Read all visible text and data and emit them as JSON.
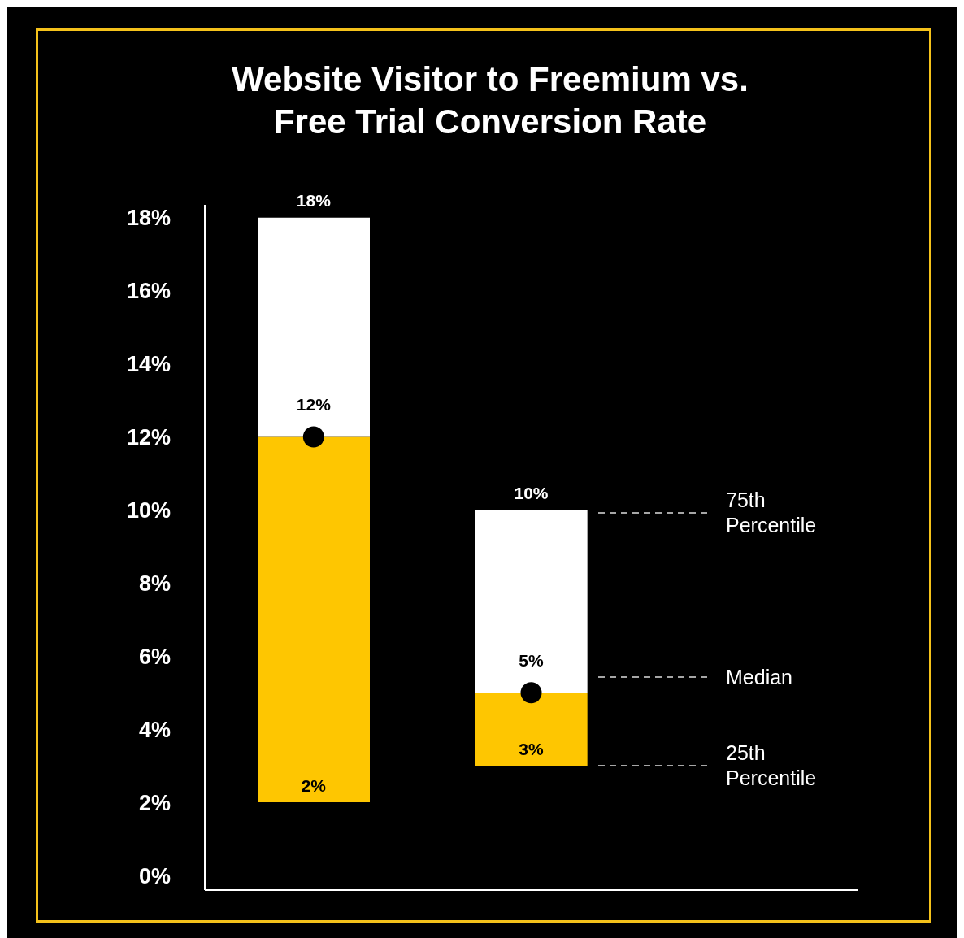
{
  "chart_data": {
    "type": "bar",
    "title": "Website Visitor to Freemium vs. Free Trial Conversion Rate",
    "categories": [
      null,
      null,
      null
    ],
    "series": [
      {
        "color": "#fec601",
        "base": [
          2,
          3,
          null
        ],
        "values": [
          10,
          2,
          null
        ]
      },
      {
        "color": "#ffffff",
        "base": [
          12,
          5,
          null
        ],
        "values": [
          6,
          5,
          null
        ]
      },
      {
        "type": "scatter",
        "color": "#000000",
        "marker": "circle",
        "values": [
          12,
          5,
          null
        ],
        "value_labels": [
          "12%",
          "5%",
          null
        ]
      }
    ],
    "ylim": [
      -0.4,
      18.35
    ],
    "yticks": [
      {
        "value": 0,
        "label": "0%"
      },
      {
        "value": 2,
        "label": "2%"
      },
      {
        "value": 4,
        "label": "4%"
      },
      {
        "value": 6,
        "label": "6%"
      },
      {
        "value": 8,
        "label": "8%"
      },
      {
        "value": 10,
        "label": "10%"
      },
      {
        "value": 12,
        "label": "12%"
      },
      {
        "value": 14,
        "label": "14%"
      },
      {
        "value": 16,
        "label": "16%"
      },
      {
        "value": 18,
        "label": "18%"
      }
    ],
    "tick_labels": "y",
    "grid": false,
    "legend": false,
    "annotations": [
      {
        "text": "18%",
        "y": 18
      },
      {
        "text": "2%",
        "y": 2
      },
      {
        "text": "10%",
        "y": 10
      },
      {
        "text": "3%",
        "y": 3
      },
      "75th Percentile",
      "Median",
      "25th Percentile"
    ]
  }
}
